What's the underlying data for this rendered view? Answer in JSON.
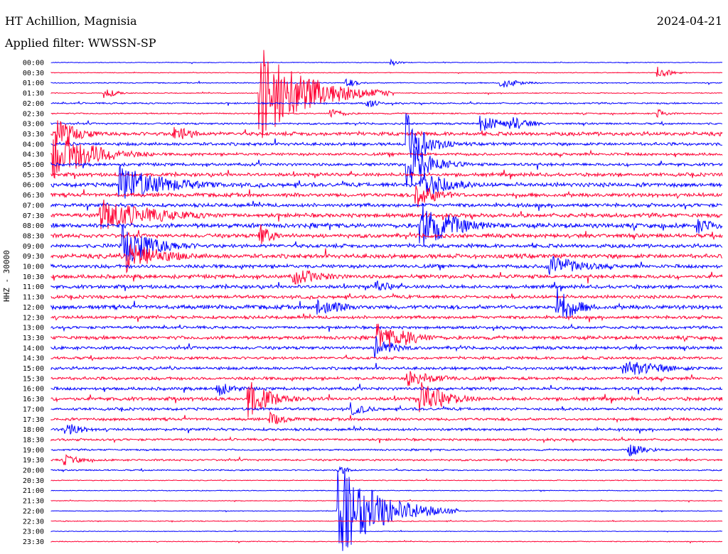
{
  "header": {
    "station": "HT Achillion, Magnisia",
    "date": "2024-04-21",
    "filter_label": "Applied filter: WWSSN-SP"
  },
  "chart_data": {
    "type": "line",
    "title": "HT Achillion, Magnisia",
    "ylabel": "HHZ - 30000",
    "date": "2024-04-21",
    "filter": "WWSSN-SP",
    "row_labels": [
      "00:00",
      "00:30",
      "01:00",
      "01:30",
      "02:00",
      "02:30",
      "03:00",
      "03:30",
      "04:00",
      "04:30",
      "05:00",
      "05:30",
      "06:00",
      "06:30",
      "07:00",
      "07:30",
      "08:00",
      "08:30",
      "09:00",
      "09:30",
      "10:00",
      "10:30",
      "11:00",
      "11:30",
      "12:00",
      "12:30",
      "13:00",
      "13:30",
      "14:00",
      "14:30",
      "15:00",
      "15:30",
      "16:00",
      "16:30",
      "17:00",
      "17:30",
      "18:00",
      "18:30",
      "19:00",
      "19:30",
      "20:00",
      "20:30",
      "21:00",
      "21:30",
      "22:00",
      "22:30",
      "23:00",
      "23:30"
    ],
    "colors": {
      "even_rows": "#0000ff",
      "odd_rows": "#ff0033"
    },
    "row_noise": [
      0.4,
      0.4,
      0.6,
      0.5,
      0.9,
      0.8,
      1.1,
      2.2,
      1.8,
      1.6,
      1.7,
      2.0,
      2.4,
      2.2,
      2.1,
      2.3,
      2.6,
      2.3,
      2.2,
      2.5,
      2.1,
      2.2,
      2.0,
      1.9,
      2.4,
      1.8,
      1.6,
      2.0,
      1.8,
      1.6,
      1.7,
      1.8,
      1.8,
      2.0,
      1.6,
      1.6,
      1.5,
      1.3,
      1.0,
      1.1,
      0.8,
      0.5,
      0.5,
      0.4,
      0.4,
      0.5,
      0.4,
      0.5
    ],
    "events": [
      {
        "row": 0,
        "minute": 15.2,
        "amp": 5,
        "dur": 0.4
      },
      {
        "row": 1,
        "minute": 27.1,
        "amp": 10,
        "dur": 0.5
      },
      {
        "row": 2,
        "minute": 13.2,
        "amp": 7,
        "dur": 0.5
      },
      {
        "row": 2,
        "minute": 20.1,
        "amp": 8,
        "dur": 0.8
      },
      {
        "row": 3,
        "minute": 2.4,
        "amp": 8,
        "dur": 0.5
      },
      {
        "row": 4,
        "minute": 14.1,
        "amp": 8,
        "dur": 0.5
      },
      {
        "row": 5,
        "minute": 12.5,
        "amp": 8,
        "dur": 0.6
      },
      {
        "row": 5,
        "minute": 27.1,
        "amp": 8,
        "dur": 0.4
      },
      {
        "row": 3,
        "minute": 9.3,
        "amp": 70,
        "dur": 2.0
      },
      {
        "row": 6,
        "minute": 19.2,
        "amp": 12,
        "dur": 1.0
      },
      {
        "row": 6,
        "minute": 20.5,
        "amp": 12,
        "dur": 0.8
      },
      {
        "row": 7,
        "minute": 0.3,
        "amp": 20,
        "dur": 1.0
      },
      {
        "row": 7,
        "minute": 5.5,
        "amp": 14,
        "dur": 0.8
      },
      {
        "row": 8,
        "minute": 15.9,
        "amp": 45,
        "dur": 0.8
      },
      {
        "row": 9,
        "minute": 0.1,
        "amp": 40,
        "dur": 1.6
      },
      {
        "row": 10,
        "minute": 15.9,
        "amp": 38,
        "dur": 1.0
      },
      {
        "row": 12,
        "minute": 3.0,
        "amp": 30,
        "dur": 2.0
      },
      {
        "row": 12,
        "minute": 16.5,
        "amp": 25,
        "dur": 1.2
      },
      {
        "row": 13,
        "minute": 16.3,
        "amp": 20,
        "dur": 1.0
      },
      {
        "row": 15,
        "minute": 2.2,
        "amp": 25,
        "dur": 2.5
      },
      {
        "row": 16,
        "minute": 16.5,
        "amp": 35,
        "dur": 1.5
      },
      {
        "row": 16,
        "minute": 28.9,
        "amp": 12,
        "dur": 1.0
      },
      {
        "row": 17,
        "minute": 9.3,
        "amp": 18,
        "dur": 0.6
      },
      {
        "row": 18,
        "minute": 3.2,
        "amp": 30,
        "dur": 1.5
      },
      {
        "row": 19,
        "minute": 3.4,
        "amp": 25,
        "dur": 1.5
      },
      {
        "row": 20,
        "minute": 22.2,
        "amp": 18,
        "dur": 1.5
      },
      {
        "row": 21,
        "minute": 10.8,
        "amp": 12,
        "dur": 1.5
      },
      {
        "row": 22,
        "minute": 14.5,
        "amp": 10,
        "dur": 0.8
      },
      {
        "row": 24,
        "minute": 22.6,
        "amp": 30,
        "dur": 0.8
      },
      {
        "row": 24,
        "minute": 11.9,
        "amp": 14,
        "dur": 1.2
      },
      {
        "row": 27,
        "minute": 14.6,
        "amp": 20,
        "dur": 1.2
      },
      {
        "row": 27,
        "minute": 15.7,
        "amp": 14,
        "dur": 1.0
      },
      {
        "row": 28,
        "minute": 14.5,
        "amp": 18,
        "dur": 0.8
      },
      {
        "row": 30,
        "minute": 25.6,
        "amp": 12,
        "dur": 2.0
      },
      {
        "row": 31,
        "minute": 15.9,
        "amp": 12,
        "dur": 1.5
      },
      {
        "row": 32,
        "minute": 7.4,
        "amp": 12,
        "dur": 0.8
      },
      {
        "row": 33,
        "minute": 8.8,
        "amp": 28,
        "dur": 1.0
      },
      {
        "row": 33,
        "minute": 16.5,
        "amp": 25,
        "dur": 1.2
      },
      {
        "row": 34,
        "minute": 13.4,
        "amp": 10,
        "dur": 0.8
      },
      {
        "row": 35,
        "minute": 9.8,
        "amp": 10,
        "dur": 0.8
      },
      {
        "row": 36,
        "minute": 0.6,
        "amp": 12,
        "dur": 0.8
      },
      {
        "row": 38,
        "minute": 25.8,
        "amp": 10,
        "dur": 0.8
      },
      {
        "row": 39,
        "minute": 0.6,
        "amp": 8,
        "dur": 0.8
      },
      {
        "row": 40,
        "minute": 12.8,
        "amp": 8,
        "dur": 0.5
      },
      {
        "row": 44,
        "minute": 12.8,
        "amp": 70,
        "dur": 1.8
      }
    ]
  }
}
